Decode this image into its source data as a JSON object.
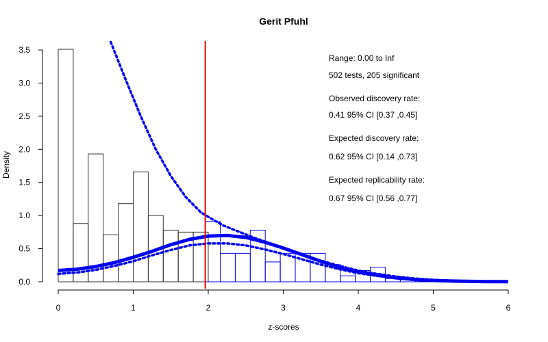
{
  "chart_data": {
    "type": "histogram",
    "title": "Gerit Pfuhl",
    "xlabel": "z-scores",
    "ylabel": "Density",
    "xlim": [
      0,
      6
    ],
    "ylim": [
      0,
      3.5
    ],
    "x_ticks": [
      0,
      1,
      2,
      3,
      4,
      5,
      6
    ],
    "y_ticks": [
      "0.0",
      "0.5",
      "1.0",
      "1.5",
      "2.0",
      "2.5",
      "3.0",
      "3.5"
    ],
    "bin_width": 0.2,
    "bins": [
      {
        "start": 0.0,
        "density": 3.51,
        "significant": false
      },
      {
        "start": 0.2,
        "density": 0.88,
        "significant": false
      },
      {
        "start": 0.4,
        "density": 1.93,
        "significant": false
      },
      {
        "start": 0.6,
        "density": 0.71,
        "significant": false
      },
      {
        "start": 0.8,
        "density": 1.18,
        "significant": false
      },
      {
        "start": 1.0,
        "density": 1.66,
        "significant": false
      },
      {
        "start": 1.2,
        "density": 1.0,
        "significant": false
      },
      {
        "start": 1.4,
        "density": 0.78,
        "significant": false
      },
      {
        "start": 1.6,
        "density": 0.75,
        "significant": false
      },
      {
        "start": 1.8,
        "density": 0.75,
        "significant": false
      },
      {
        "start": 1.96,
        "density": 0.91,
        "significant": true
      },
      {
        "start": 2.16,
        "density": 0.43,
        "significant": true
      },
      {
        "start": 2.36,
        "density": 0.43,
        "significant": true
      },
      {
        "start": 2.56,
        "density": 0.78,
        "significant": true
      },
      {
        "start": 2.76,
        "density": 0.3,
        "significant": true
      },
      {
        "start": 2.96,
        "density": 0.43,
        "significant": true
      },
      {
        "start": 3.16,
        "density": 0.43,
        "significant": true
      },
      {
        "start": 3.36,
        "density": 0.43,
        "significant": true
      },
      {
        "start": 3.56,
        "density": 0.26,
        "significant": true
      },
      {
        "start": 3.76,
        "density": 0.09,
        "significant": true
      },
      {
        "start": 3.96,
        "density": 0.17,
        "significant": true
      },
      {
        "start": 4.16,
        "density": 0.22,
        "significant": true
      },
      {
        "start": 4.36,
        "density": 0.05,
        "significant": true
      },
      {
        "start": 4.56,
        "density": 0.03,
        "significant": true
      },
      {
        "start": 4.76,
        "density": 0.02,
        "significant": true
      }
    ],
    "critical_z": 1.96,
    "fitted_curve": {
      "x": [
        0,
        0.25,
        0.5,
        0.75,
        1.0,
        1.25,
        1.5,
        1.75,
        2.0,
        2.25,
        2.5,
        2.75,
        3.0,
        3.25,
        3.5,
        3.75,
        4.0,
        4.25,
        4.5,
        4.75,
        5.0,
        5.25,
        5.5,
        5.75,
        6.0
      ],
      "y": [
        0.17,
        0.19,
        0.23,
        0.29,
        0.37,
        0.46,
        0.56,
        0.64,
        0.69,
        0.7,
        0.67,
        0.6,
        0.51,
        0.41,
        0.31,
        0.22,
        0.15,
        0.1,
        0.06,
        0.035,
        0.02,
        0.012,
        0.006,
        0.003,
        0.002
      ]
    },
    "ci_upper_curve": {
      "x": [
        0.7,
        0.9,
        1.1,
        1.3,
        1.5,
        1.7,
        1.9,
        2.0,
        2.2,
        2.4,
        2.6,
        2.8,
        3.0,
        3.25,
        3.5,
        3.75,
        4.0,
        4.25,
        4.5,
        4.75,
        5.0,
        5.25,
        5.5
      ],
      "y": [
        3.62,
        3.05,
        2.5,
        2.0,
        1.6,
        1.28,
        1.05,
        0.98,
        0.85,
        0.76,
        0.67,
        0.59,
        0.5,
        0.41,
        0.32,
        0.24,
        0.17,
        0.12,
        0.08,
        0.05,
        0.03,
        0.015,
        0.008
      ]
    },
    "ci_lower_curve": {
      "x": [
        0,
        0.25,
        0.5,
        0.75,
        1.0,
        1.25,
        1.5,
        1.75,
        2.0,
        2.25,
        2.5,
        2.75,
        3.0,
        3.25,
        3.5,
        3.75,
        4.0,
        4.25,
        4.5,
        4.75,
        5.0,
        5.25,
        5.5
      ],
      "y": [
        0.12,
        0.14,
        0.18,
        0.24,
        0.31,
        0.4,
        0.48,
        0.55,
        0.58,
        0.58,
        0.55,
        0.49,
        0.42,
        0.34,
        0.26,
        0.19,
        0.13,
        0.09,
        0.06,
        0.035,
        0.02,
        0.01,
        0.005
      ]
    },
    "annotations": [
      "Range: 0.00 to Inf",
      "502 tests, 205 significant",
      "Observed discovery rate:",
      "0.41  95% CI [0.37 ,0.45]",
      "Expected discovery rate:",
      "0.62  95% CI [0.14 ,0.73]",
      "Expected replicability rate:",
      "0.67  95% CI [0.56 ,0.77]"
    ],
    "colors": {
      "nonsig_bar": "#333333",
      "sig_bar": "#0000ee",
      "curve": "#0000ee",
      "critical_line": "#ee0000"
    }
  }
}
